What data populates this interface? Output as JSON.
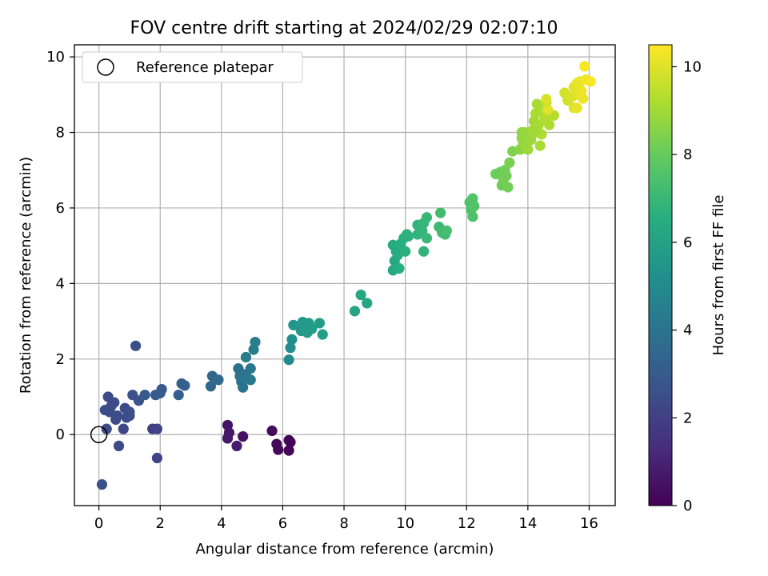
{
  "chart_data": {
    "type": "scatter",
    "title": "FOV centre drift starting at 2024/02/29 02:07:10",
    "xlabel": "Angular distance from reference (arcmin)",
    "ylabel": "Rotation from reference (arcmin)",
    "xlim": [
      -0.8,
      16.85
    ],
    "ylim": [
      -1.88,
      10.32
    ],
    "xticks": [
      0,
      2,
      4,
      6,
      8,
      10,
      12,
      14,
      16
    ],
    "yticks": [
      0,
      2,
      4,
      6,
      8,
      10
    ],
    "grid": true,
    "legend": {
      "position": "top-left",
      "entries": [
        "Reference platepar"
      ]
    },
    "reference_point": {
      "x": 0,
      "y": 0,
      "marker": "open-circle"
    },
    "colorbar": {
      "label": "Hours from first FF file",
      "range": [
        0,
        10.5
      ],
      "ticks": [
        0,
        2,
        4,
        6,
        8,
        10
      ],
      "colormap": "viridis"
    },
    "points": [
      {
        "x": 4.2,
        "y": 0.25,
        "c": 0.5
      },
      {
        "x": 4.25,
        "y": 0.05,
        "c": 0.6
      },
      {
        "x": 4.2,
        "y": -0.1,
        "c": 0.7
      },
      {
        "x": 4.5,
        "y": -0.3,
        "c": 0.8
      },
      {
        "x": 4.7,
        "y": -0.05,
        "c": 0.5
      },
      {
        "x": 5.65,
        "y": 0.1,
        "c": 0.3
      },
      {
        "x": 5.8,
        "y": -0.25,
        "c": 0.2
      },
      {
        "x": 5.85,
        "y": -0.4,
        "c": 0.2
      },
      {
        "x": 6.2,
        "y": -0.15,
        "c": 0.1
      },
      {
        "x": 6.25,
        "y": -0.2,
        "c": 0.1
      },
      {
        "x": 6.2,
        "y": -0.42,
        "c": 0.05
      },
      {
        "x": 0.1,
        "y": -1.32,
        "c": 2.6
      },
      {
        "x": 1.2,
        "y": 2.35,
        "c": 2.5
      },
      {
        "x": 0.65,
        "y": -0.3,
        "c": 2.3
      },
      {
        "x": 0.25,
        "y": 0.15,
        "c": 2.4
      },
      {
        "x": 0.35,
        "y": 0.6,
        "c": 2.5
      },
      {
        "x": 0.3,
        "y": 1.0,
        "c": 2.4
      },
      {
        "x": 0.5,
        "y": 0.85,
        "c": 2.5
      },
      {
        "x": 0.2,
        "y": 0.65,
        "c": 2.5
      },
      {
        "x": 0.4,
        "y": 0.75,
        "c": 2.4
      },
      {
        "x": 0.55,
        "y": 0.4,
        "c": 2.3
      },
      {
        "x": 0.6,
        "y": 0.5,
        "c": 2.4
      },
      {
        "x": 0.8,
        "y": 0.15,
        "c": 2.2
      },
      {
        "x": 0.9,
        "y": 0.45,
        "c": 2.5
      },
      {
        "x": 0.85,
        "y": 0.7,
        "c": 2.4
      },
      {
        "x": 1.0,
        "y": 0.6,
        "c": 2.6
      },
      {
        "x": 1.0,
        "y": 0.5,
        "c": 2.5
      },
      {
        "x": 1.1,
        "y": 1.05,
        "c": 2.6
      },
      {
        "x": 1.3,
        "y": 0.9,
        "c": 2.7
      },
      {
        "x": 1.5,
        "y": 1.05,
        "c": 2.9
      },
      {
        "x": 1.75,
        "y": 0.15,
        "c": 2.0
      },
      {
        "x": 1.9,
        "y": 0.15,
        "c": 2.1
      },
      {
        "x": 1.9,
        "y": -0.62,
        "c": 2.1
      },
      {
        "x": 1.85,
        "y": 1.05,
        "c": 2.9
      },
      {
        "x": 2.0,
        "y": 1.1,
        "c": 3.0
      },
      {
        "x": 2.05,
        "y": 1.2,
        "c": 3.0
      },
      {
        "x": 2.6,
        "y": 1.05,
        "c": 3.1
      },
      {
        "x": 2.7,
        "y": 1.35,
        "c": 3.2
      },
      {
        "x": 2.8,
        "y": 1.3,
        "c": 3.2
      },
      {
        "x": 3.65,
        "y": 1.28,
        "c": 3.5
      },
      {
        "x": 3.7,
        "y": 1.55,
        "c": 3.5
      },
      {
        "x": 3.9,
        "y": 1.45,
        "c": 3.6
      },
      {
        "x": 4.55,
        "y": 1.75,
        "c": 3.8
      },
      {
        "x": 4.6,
        "y": 1.55,
        "c": 3.9
      },
      {
        "x": 4.7,
        "y": 1.6,
        "c": 3.9
      },
      {
        "x": 4.65,
        "y": 1.4,
        "c": 4.0
      },
      {
        "x": 4.7,
        "y": 1.25,
        "c": 4.0
      },
      {
        "x": 4.8,
        "y": 1.55,
        "c": 4.1
      },
      {
        "x": 4.95,
        "y": 1.75,
        "c": 4.1
      },
      {
        "x": 4.95,
        "y": 1.45,
        "c": 4.2
      },
      {
        "x": 4.8,
        "y": 2.05,
        "c": 4.3
      },
      {
        "x": 5.05,
        "y": 2.25,
        "c": 4.4
      },
      {
        "x": 5.1,
        "y": 2.45,
        "c": 4.5
      },
      {
        "x": 6.2,
        "y": 1.98,
        "c": 5.0
      },
      {
        "x": 6.25,
        "y": 2.3,
        "c": 5.1
      },
      {
        "x": 6.3,
        "y": 2.52,
        "c": 5.2
      },
      {
        "x": 6.35,
        "y": 2.9,
        "c": 5.4
      },
      {
        "x": 6.55,
        "y": 2.85,
        "c": 5.5
      },
      {
        "x": 6.6,
        "y": 2.75,
        "c": 5.5
      },
      {
        "x": 6.65,
        "y": 2.98,
        "c": 5.6
      },
      {
        "x": 6.75,
        "y": 2.85,
        "c": 5.6
      },
      {
        "x": 6.8,
        "y": 2.7,
        "c": 5.7
      },
      {
        "x": 6.85,
        "y": 2.95,
        "c": 5.7
      },
      {
        "x": 6.95,
        "y": 2.8,
        "c": 5.8
      },
      {
        "x": 7.2,
        "y": 2.95,
        "c": 5.8
      },
      {
        "x": 7.3,
        "y": 2.65,
        "c": 5.9
      },
      {
        "x": 8.35,
        "y": 3.27,
        "c": 6.1
      },
      {
        "x": 8.55,
        "y": 3.7,
        "c": 6.2
      },
      {
        "x": 8.75,
        "y": 3.48,
        "c": 6.2
      },
      {
        "x": 9.6,
        "y": 4.35,
        "c": 6.3
      },
      {
        "x": 9.65,
        "y": 4.6,
        "c": 6.3
      },
      {
        "x": 9.6,
        "y": 5.02,
        "c": 6.4
      },
      {
        "x": 9.7,
        "y": 4.85,
        "c": 6.4
      },
      {
        "x": 9.75,
        "y": 4.75,
        "c": 6.5
      },
      {
        "x": 9.8,
        "y": 4.4,
        "c": 6.5
      },
      {
        "x": 9.85,
        "y": 5.05,
        "c": 6.5
      },
      {
        "x": 9.95,
        "y": 5.2,
        "c": 6.6
      },
      {
        "x": 10.0,
        "y": 4.85,
        "c": 6.6
      },
      {
        "x": 10.05,
        "y": 5.3,
        "c": 6.7
      },
      {
        "x": 10.1,
        "y": 5.25,
        "c": 6.7
      },
      {
        "x": 10.4,
        "y": 5.55,
        "c": 6.8
      },
      {
        "x": 10.4,
        "y": 5.3,
        "c": 6.8
      },
      {
        "x": 10.55,
        "y": 5.4,
        "c": 6.9
      },
      {
        "x": 10.6,
        "y": 5.6,
        "c": 6.9
      },
      {
        "x": 10.6,
        "y": 4.85,
        "c": 6.8
      },
      {
        "x": 10.7,
        "y": 5.75,
        "c": 7.0
      },
      {
        "x": 10.7,
        "y": 5.2,
        "c": 7.0
      },
      {
        "x": 11.1,
        "y": 5.5,
        "c": 7.1
      },
      {
        "x": 11.15,
        "y": 5.87,
        "c": 7.2
      },
      {
        "x": 11.2,
        "y": 5.35,
        "c": 7.2
      },
      {
        "x": 11.3,
        "y": 5.3,
        "c": 7.2
      },
      {
        "x": 11.35,
        "y": 5.4,
        "c": 7.3
      },
      {
        "x": 12.1,
        "y": 6.15,
        "c": 7.5
      },
      {
        "x": 12.15,
        "y": 5.95,
        "c": 7.5
      },
      {
        "x": 12.2,
        "y": 5.77,
        "c": 7.5
      },
      {
        "x": 12.2,
        "y": 6.25,
        "c": 7.6
      },
      {
        "x": 12.25,
        "y": 6.05,
        "c": 7.6
      },
      {
        "x": 12.95,
        "y": 6.9,
        "c": 8.1
      },
      {
        "x": 13.1,
        "y": 6.95,
        "c": 8.1
      },
      {
        "x": 13.15,
        "y": 6.6,
        "c": 8.1
      },
      {
        "x": 13.2,
        "y": 6.75,
        "c": 8.2
      },
      {
        "x": 13.25,
        "y": 7.0,
        "c": 8.2
      },
      {
        "x": 13.3,
        "y": 6.85,
        "c": 8.2
      },
      {
        "x": 13.35,
        "y": 6.55,
        "c": 8.2
      },
      {
        "x": 13.4,
        "y": 7.2,
        "c": 8.3
      },
      {
        "x": 13.5,
        "y": 7.5,
        "c": 8.4
      },
      {
        "x": 13.75,
        "y": 7.55,
        "c": 8.6
      },
      {
        "x": 13.8,
        "y": 8.0,
        "c": 8.7
      },
      {
        "x": 13.8,
        "y": 7.85,
        "c": 8.7
      },
      {
        "x": 13.85,
        "y": 7.7,
        "c": 8.8
      },
      {
        "x": 13.9,
        "y": 8.0,
        "c": 8.8
      },
      {
        "x": 13.95,
        "y": 7.9,
        "c": 8.8
      },
      {
        "x": 14.0,
        "y": 7.55,
        "c": 8.9
      },
      {
        "x": 14.1,
        "y": 7.8,
        "c": 8.9
      },
      {
        "x": 14.15,
        "y": 8.05,
        "c": 9.0
      },
      {
        "x": 14.2,
        "y": 8.3,
        "c": 9.0
      },
      {
        "x": 14.25,
        "y": 8.5,
        "c": 9.1
      },
      {
        "x": 14.3,
        "y": 8.75,
        "c": 9.1
      },
      {
        "x": 14.35,
        "y": 8.2,
        "c": 9.1
      },
      {
        "x": 14.4,
        "y": 7.65,
        "c": 9.1
      },
      {
        "x": 14.45,
        "y": 7.95,
        "c": 9.2
      },
      {
        "x": 14.5,
        "y": 8.55,
        "c": 9.2
      },
      {
        "x": 14.55,
        "y": 8.35,
        "c": 9.2
      },
      {
        "x": 14.6,
        "y": 8.8,
        "c": 9.3
      },
      {
        "x": 14.65,
        "y": 8.45,
        "c": 9.3
      },
      {
        "x": 14.7,
        "y": 8.2,
        "c": 9.2
      },
      {
        "x": 14.85,
        "y": 8.45,
        "c": 9.3
      },
      {
        "x": 14.25,
        "y": 8.0,
        "c": 9.0
      },
      {
        "x": 14.6,
        "y": 8.88,
        "c": 9.9
      },
      {
        "x": 14.65,
        "y": 8.6,
        "c": 10.0
      },
      {
        "x": 15.2,
        "y": 9.05,
        "c": 9.8
      },
      {
        "x": 15.3,
        "y": 8.85,
        "c": 9.8
      },
      {
        "x": 15.45,
        "y": 8.95,
        "c": 9.9
      },
      {
        "x": 15.5,
        "y": 9.2,
        "c": 10.0
      },
      {
        "x": 15.5,
        "y": 8.65,
        "c": 10.0
      },
      {
        "x": 15.6,
        "y": 8.65,
        "c": 10.1
      },
      {
        "x": 15.6,
        "y": 9.3,
        "c": 10.1
      },
      {
        "x": 15.65,
        "y": 9.0,
        "c": 10.1
      },
      {
        "x": 15.7,
        "y": 9.35,
        "c": 10.2
      },
      {
        "x": 15.75,
        "y": 9.1,
        "c": 10.2
      },
      {
        "x": 15.8,
        "y": 8.9,
        "c": 10.2
      },
      {
        "x": 15.85,
        "y": 9.75,
        "c": 10.4
      },
      {
        "x": 15.9,
        "y": 9.4,
        "c": 10.3
      },
      {
        "x": 16.05,
        "y": 9.35,
        "c": 10.4
      }
    ]
  }
}
